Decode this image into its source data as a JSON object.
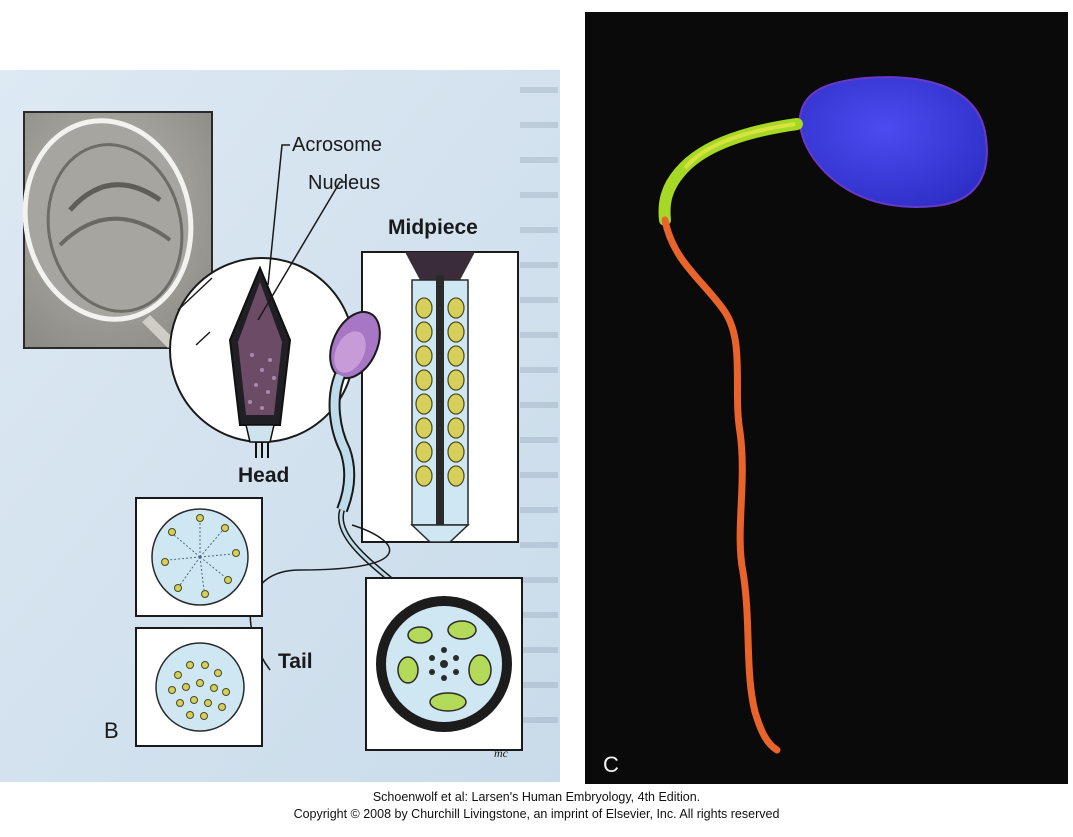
{
  "panel_b": {
    "panel_letter": "B",
    "labels": {
      "acrosome": "Acrosome",
      "nucleus": "Nucleus",
      "midpiece": "Midpiece",
      "head": "Head",
      "tail": "Tail"
    },
    "signature": "mc"
  },
  "panel_c": {
    "panel_letter": "C",
    "colors": {
      "head": "#3f3fe6",
      "midpiece": "#b8e02a",
      "tail": "#e8642a",
      "background": "#0b0a0a"
    }
  },
  "caption": {
    "line1": "Schoenwolf et al: Larsen's Human Embryology, 4th Edition.",
    "line2": "Copyright © 2008 by Churchill Livingstone, an imprint of Elsevier, Inc. All rights reserved"
  }
}
